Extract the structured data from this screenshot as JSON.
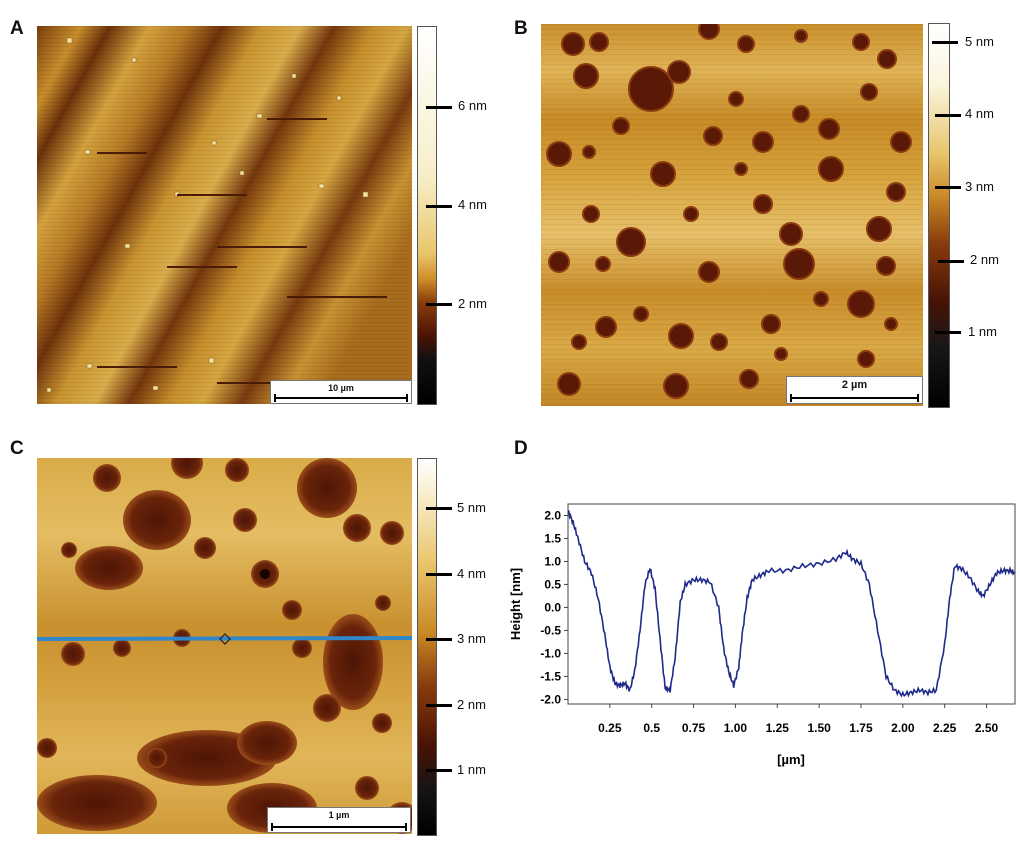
{
  "panels": {
    "a": {
      "letter": "A",
      "scale_bar": "10 µm",
      "colorbar_ticks": [
        "6 nm",
        "4 nm",
        "2 nm"
      ]
    },
    "b": {
      "letter": "B",
      "scale_bar": "2 µm",
      "colorbar_ticks": [
        "5 nm",
        "4 nm",
        "3 nm",
        "2 nm",
        "1 nm"
      ]
    },
    "c": {
      "letter": "C",
      "scale_bar": "1 µm",
      "colorbar_ticks": [
        "5 nm",
        "4 nm",
        "3 nm",
        "2 nm",
        "1 nm"
      ]
    },
    "d": {
      "letter": "D"
    }
  },
  "chart_data": {
    "type": "line",
    "title": "",
    "xlabel": "[µm]",
    "ylabel": "Height  [nm]",
    "xlim": [
      0.0,
      2.67
    ],
    "ylim": [
      -2.1,
      2.25
    ],
    "xticks": [
      "0.25",
      "0.5",
      "0.75",
      "1.00",
      "1.25",
      "1.50",
      "1.75",
      "2.00",
      "2.25",
      "2.50"
    ],
    "yticks": [
      "2.0",
      "1.5",
      "1.0",
      "0.5",
      "0.0",
      "-0.5",
      "-1.0",
      "-1.5",
      "-2.0"
    ],
    "line_color": "#1f2a8a",
    "grid": false,
    "series": [
      {
        "x": [
          0.0,
          0.03,
          0.06,
          0.1,
          0.14,
          0.18,
          0.22,
          0.25,
          0.28,
          0.31,
          0.34,
          0.37,
          0.4,
          0.43,
          0.46,
          0.49,
          0.52,
          0.55,
          0.58,
          0.61,
          0.64,
          0.67,
          0.7,
          0.75,
          0.8,
          0.85,
          0.9,
          0.93,
          0.96,
          0.99,
          1.02,
          1.04,
          1.07,
          1.1,
          1.15,
          1.2,
          1.3,
          1.4,
          1.5,
          1.6,
          1.66,
          1.7,
          1.75,
          1.8,
          1.85,
          1.9,
          1.95,
          2.0,
          2.05,
          2.1,
          2.15,
          2.2,
          2.25,
          2.28,
          2.31,
          2.35,
          2.4,
          2.45,
          2.48,
          2.52,
          2.56,
          2.6,
          2.64,
          2.67
        ],
        "y": [
          2.1,
          1.85,
          1.5,
          1.0,
          0.75,
          0.2,
          -0.6,
          -1.3,
          -1.65,
          -1.7,
          -1.65,
          -1.8,
          -1.35,
          -0.5,
          0.5,
          0.85,
          0.4,
          -0.7,
          -1.75,
          -1.8,
          -1.1,
          0.1,
          0.5,
          0.6,
          0.6,
          0.55,
          0.0,
          -0.9,
          -1.4,
          -1.7,
          -1.3,
          -0.6,
          0.2,
          0.6,
          0.7,
          0.8,
          0.8,
          0.9,
          0.95,
          1.05,
          1.2,
          1.05,
          0.95,
          0.5,
          -0.5,
          -1.5,
          -1.8,
          -1.9,
          -1.85,
          -1.8,
          -1.85,
          -1.8,
          -0.8,
          0.2,
          0.9,
          0.85,
          0.65,
          0.35,
          0.25,
          0.5,
          0.75,
          0.8,
          0.8,
          0.75
        ]
      }
    ]
  }
}
